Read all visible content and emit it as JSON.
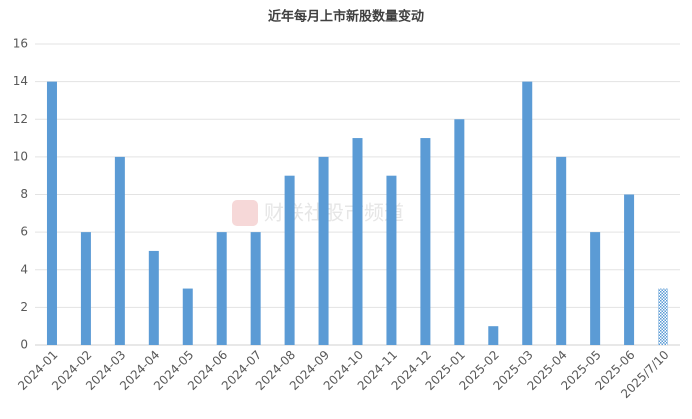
{
  "chart_data": {
    "type": "bar",
    "title": "近年每月上市新股数量变动",
    "watermark": "财联社股市频道",
    "categories": [
      "2024-01",
      "2024-02",
      "2024-03",
      "2024-04",
      "2024-05",
      "2024-06",
      "2024-07",
      "2024-08",
      "2024-09",
      "2024-10",
      "2024-11",
      "2024-12",
      "2025-01",
      "2025-02",
      "2025-03",
      "2025-04",
      "2025-05",
      "2025-06",
      "2025/7/10"
    ],
    "values": [
      14,
      6,
      10,
      5,
      3,
      6,
      6,
      9,
      10,
      11,
      9,
      11,
      12,
      1,
      14,
      10,
      6,
      8,
      3
    ],
    "color": "#5b9bd5",
    "hatched_last": true,
    "ylim": [
      0,
      16
    ],
    "yticks": [
      0,
      2,
      4,
      6,
      8,
      10,
      12,
      14,
      16
    ],
    "grid": true
  }
}
